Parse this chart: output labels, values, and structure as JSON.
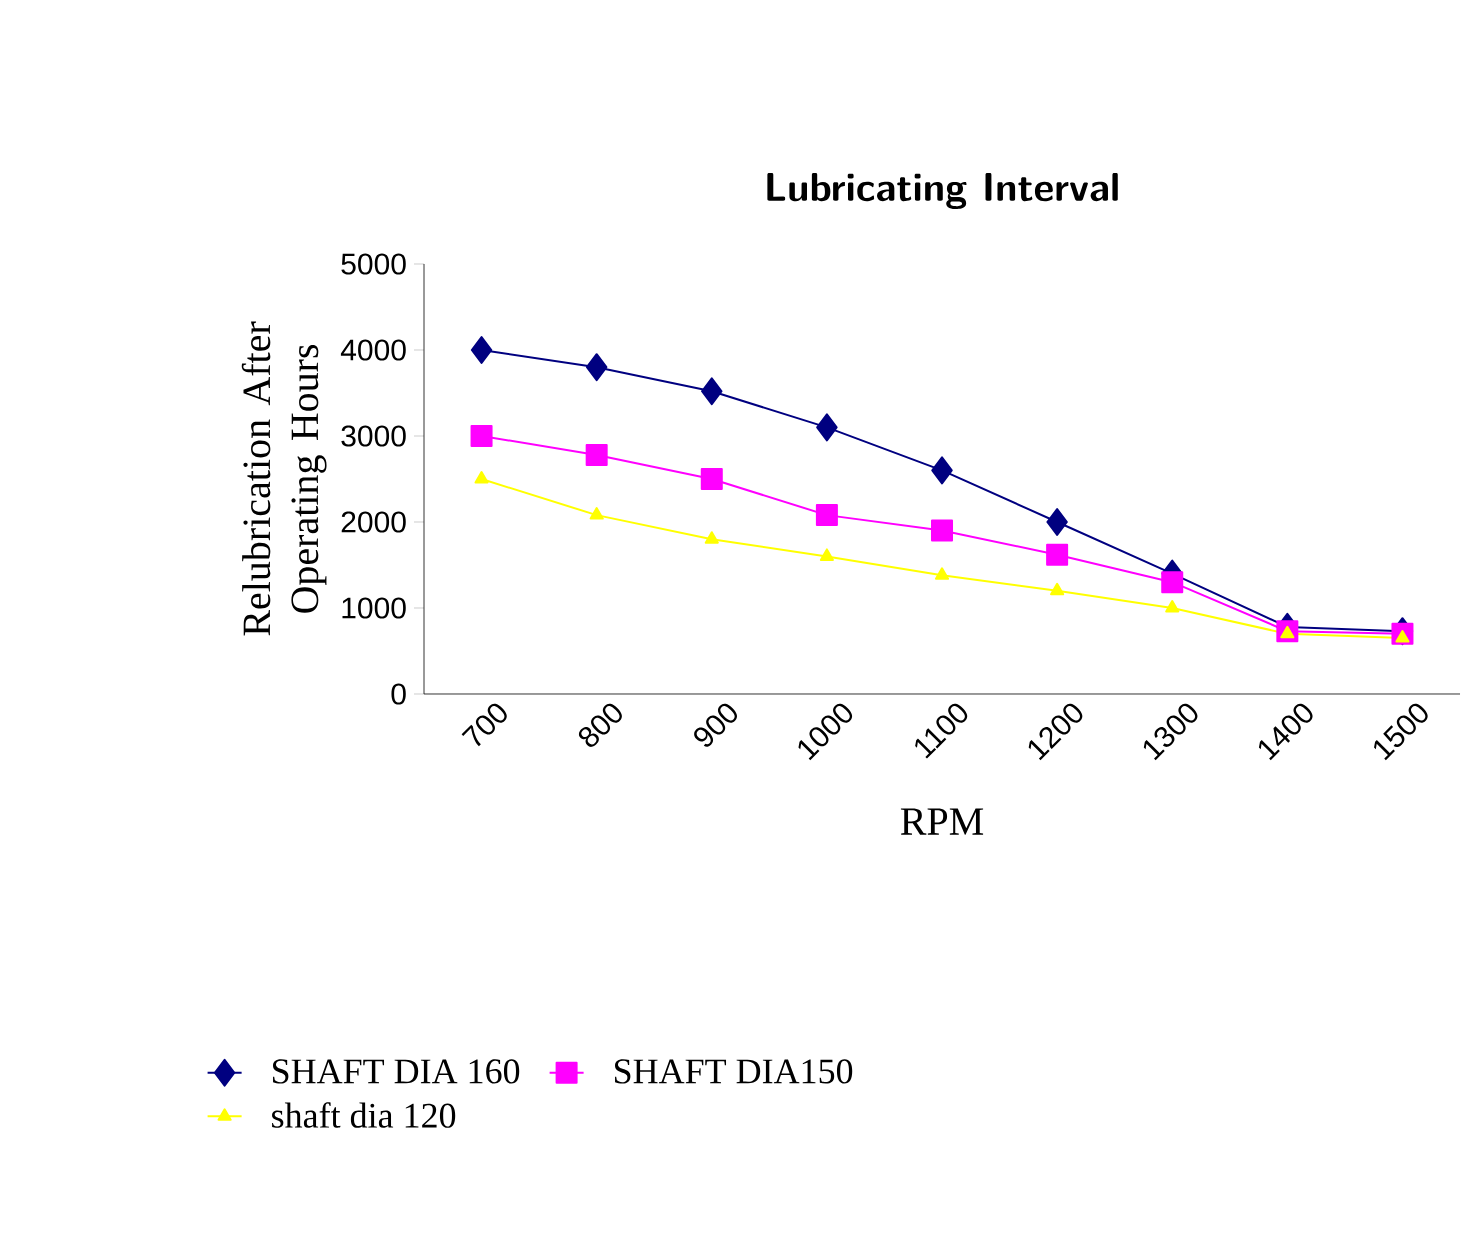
{
  "chart_data": {
    "type": "line",
    "title": "Lubricating Interval",
    "xlabel": "RPM",
    "ylabel": "Relubrication After Operating Hours",
    "categories": [
      "700",
      "800",
      "900",
      "1000",
      "1100",
      "1200",
      "1300",
      "1400",
      "1500"
    ],
    "series": [
      {
        "name": "SHAFT DIA 160",
        "color": "#000080",
        "marker": "diamond",
        "values": [
          4000,
          3800,
          3520,
          3100,
          2600,
          2000,
          1400,
          780,
          730
        ]
      },
      {
        "name": "SHAFT DIA150",
        "color": "#ff00ff",
        "marker": "square",
        "values": [
          3000,
          2780,
          2500,
          2080,
          1900,
          1620,
          1300,
          730,
          700
        ]
      },
      {
        "name": "shaft dia 120",
        "color": "#ffff00",
        "marker": "triangle",
        "values": [
          2500,
          2080,
          1800,
          1600,
          1380,
          1200,
          1000,
          700,
          650
        ]
      }
    ],
    "ylim": [
      0,
      5000
    ],
    "yticks": [
      0,
      1000,
      2000,
      3000,
      4000,
      5000
    ],
    "grid": false,
    "legend": "bottom",
    "line_style": "solid"
  }
}
